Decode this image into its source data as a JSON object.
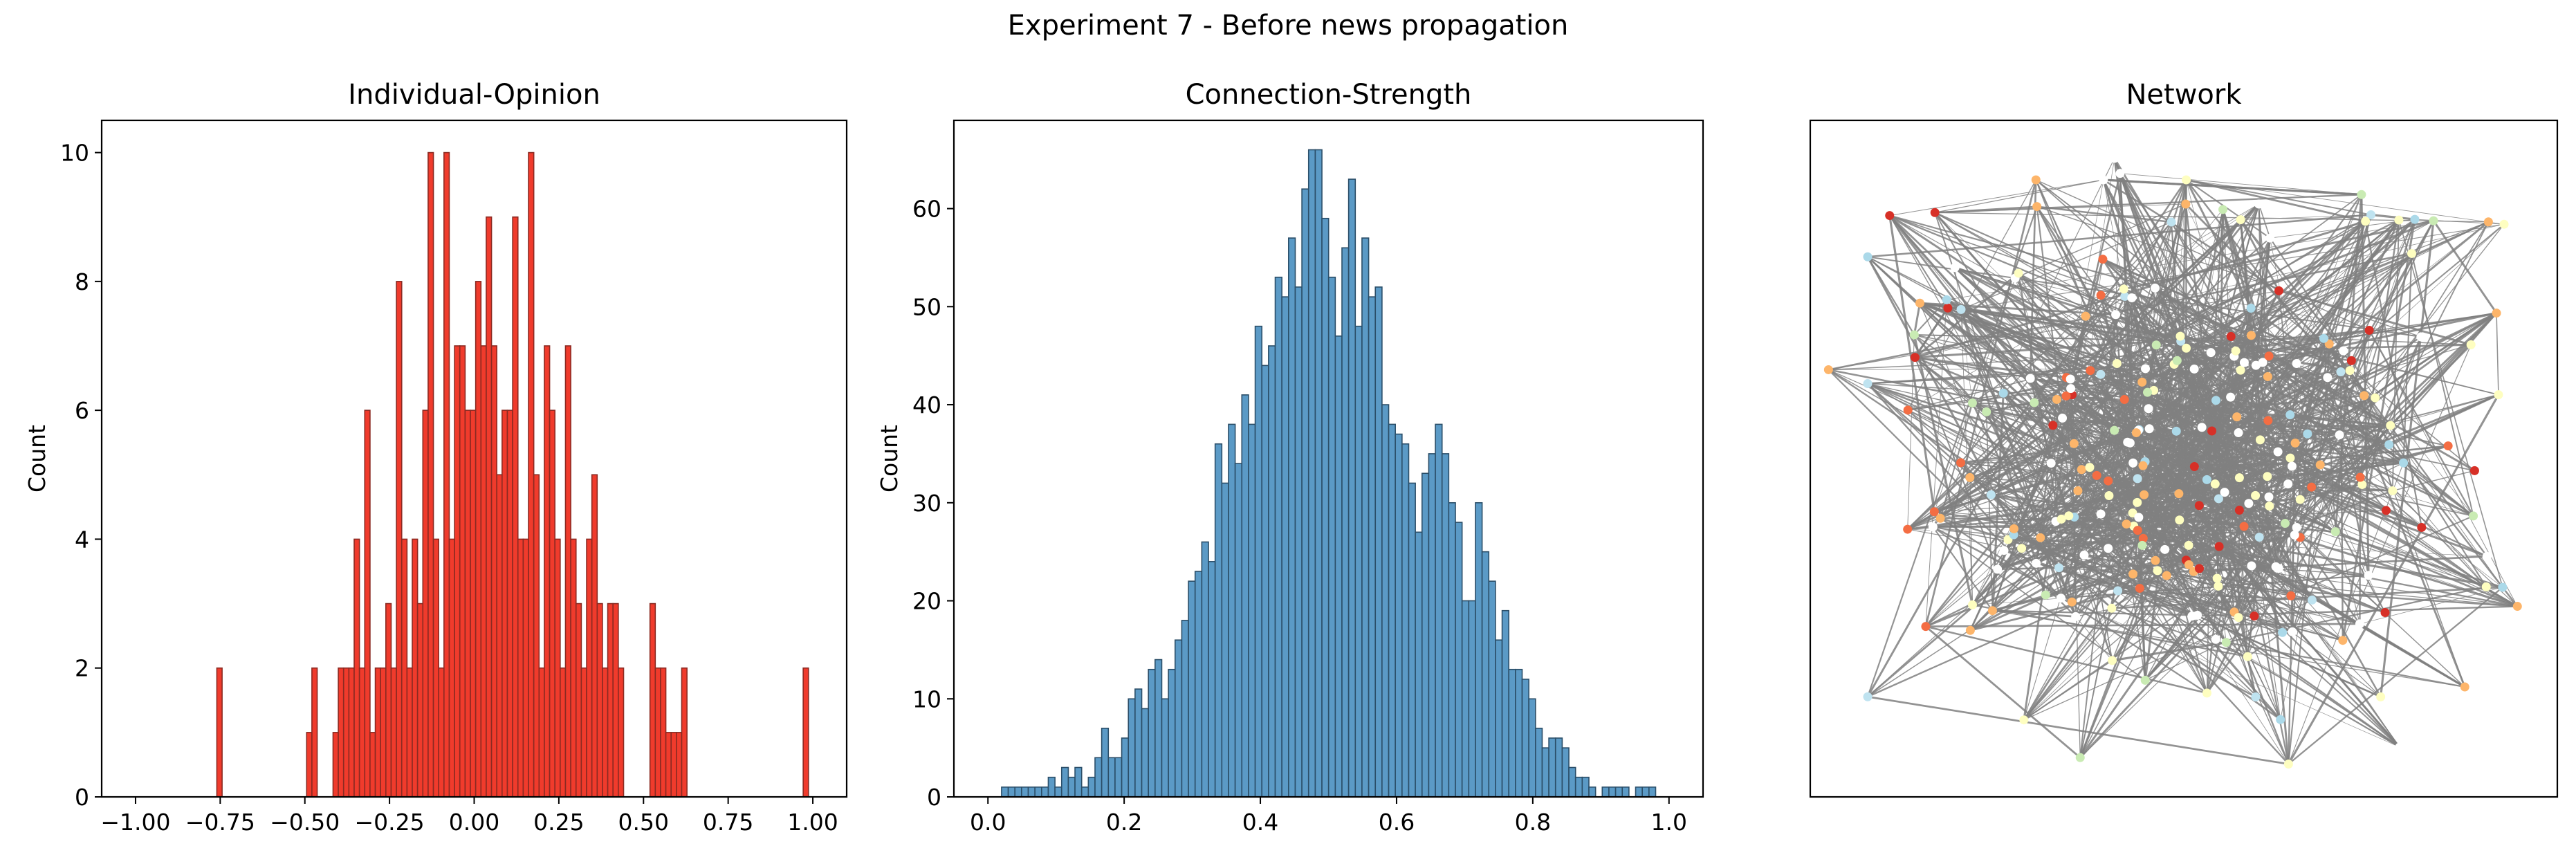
{
  "figure": {
    "suptitle": "Experiment 7 - Before news propagation"
  },
  "colors": {
    "opinion_bar": "#f03b2c",
    "opinion_edge": "#8b2a22",
    "strength_bar": "#5b9ac6",
    "strength_edge": "#2b4e68",
    "network_edge": "#808080"
  },
  "chart_data": [
    {
      "type": "bar",
      "kind": "histogram",
      "title": "Individual-Opinion",
      "xlabel": "",
      "ylabel": "Count",
      "xlim": [
        -1.1,
        1.1
      ],
      "ylim": [
        0,
        10.5
      ],
      "xticks": [
        -1.0,
        -0.75,
        -0.5,
        -0.25,
        0.0,
        0.25,
        0.5,
        0.75,
        1.0
      ],
      "xtick_labels": [
        "−1.00",
        "−0.75",
        "−0.50",
        "−0.25",
        "0.00",
        "0.25",
        "0.50",
        "0.75",
        "1.00"
      ],
      "yticks": [
        0,
        2,
        4,
        6,
        8,
        10
      ],
      "ytick_labels": [
        "0",
        "2",
        "4",
        "6",
        "8",
        "10"
      ],
      "bin_start": -0.76,
      "bin_width": 0.0156,
      "values": [
        2,
        0,
        0,
        0,
        0,
        0,
        0,
        0,
        0,
        0,
        0,
        0,
        0,
        0,
        0,
        0,
        0,
        1,
        2,
        0,
        0,
        0,
        1,
        2,
        2,
        2,
        4,
        2,
        6,
        1,
        2,
        2,
        3,
        2,
        8,
        4,
        2,
        4,
        3,
        6,
        10,
        4,
        2,
        10,
        4,
        7,
        7,
        6,
        6,
        8,
        7,
        9,
        7,
        5,
        6,
        6,
        9,
        4,
        4,
        10,
        5,
        2,
        7,
        6,
        4,
        2,
        7,
        4,
        3,
        2,
        4,
        5,
        3,
        2,
        3,
        3,
        2,
        0,
        0,
        0,
        0,
        0,
        3,
        2,
        2,
        1,
        1,
        1,
        2,
        0,
        0,
        0,
        0,
        0,
        0,
        0,
        0,
        0,
        0,
        0,
        0,
        0,
        0,
        0,
        0,
        0,
        0,
        0,
        0,
        0,
        0,
        2
      ]
    },
    {
      "type": "bar",
      "kind": "histogram",
      "title": "Connection-Strength",
      "xlabel": "",
      "ylabel": "Count",
      "xlim": [
        -0.05,
        1.05
      ],
      "ylim": [
        0,
        69
      ],
      "xticks": [
        0.0,
        0.2,
        0.4,
        0.6,
        0.8,
        1.0
      ],
      "xtick_labels": [
        "0.0",
        "0.2",
        "0.4",
        "0.6",
        "0.8",
        "1.0"
      ],
      "yticks": [
        0,
        10,
        20,
        30,
        40,
        50,
        60
      ],
      "ytick_labels": [
        "0",
        "10",
        "20",
        "30",
        "40",
        "50",
        "60"
      ],
      "bin_start": 0.02,
      "bin_width": 0.0098,
      "values": [
        1,
        1,
        1,
        1,
        1,
        1,
        1,
        2,
        1,
        3,
        2,
        3,
        1,
        2,
        4,
        7,
        4,
        4,
        6,
        10,
        11,
        9,
        13,
        14,
        10,
        13,
        16,
        18,
        22,
        23,
        26,
        24,
        36,
        32,
        38,
        34,
        41,
        38,
        48,
        44,
        46,
        53,
        51,
        57,
        52,
        62,
        66,
        66,
        59,
        53,
        47,
        56,
        63,
        48,
        57,
        51,
        52,
        40,
        38,
        37,
        36,
        32,
        27,
        33,
        35,
        38,
        35,
        30,
        28,
        20,
        20,
        30,
        25,
        22,
        16,
        19,
        13,
        13,
        12,
        10,
        7,
        5,
        6,
        6,
        5,
        3,
        2,
        2,
        1,
        0,
        1,
        1,
        1,
        1,
        0,
        1,
        1,
        1,
        0,
        0,
        0
      ]
    }
  ],
  "network": {
    "title": "Network"
  }
}
